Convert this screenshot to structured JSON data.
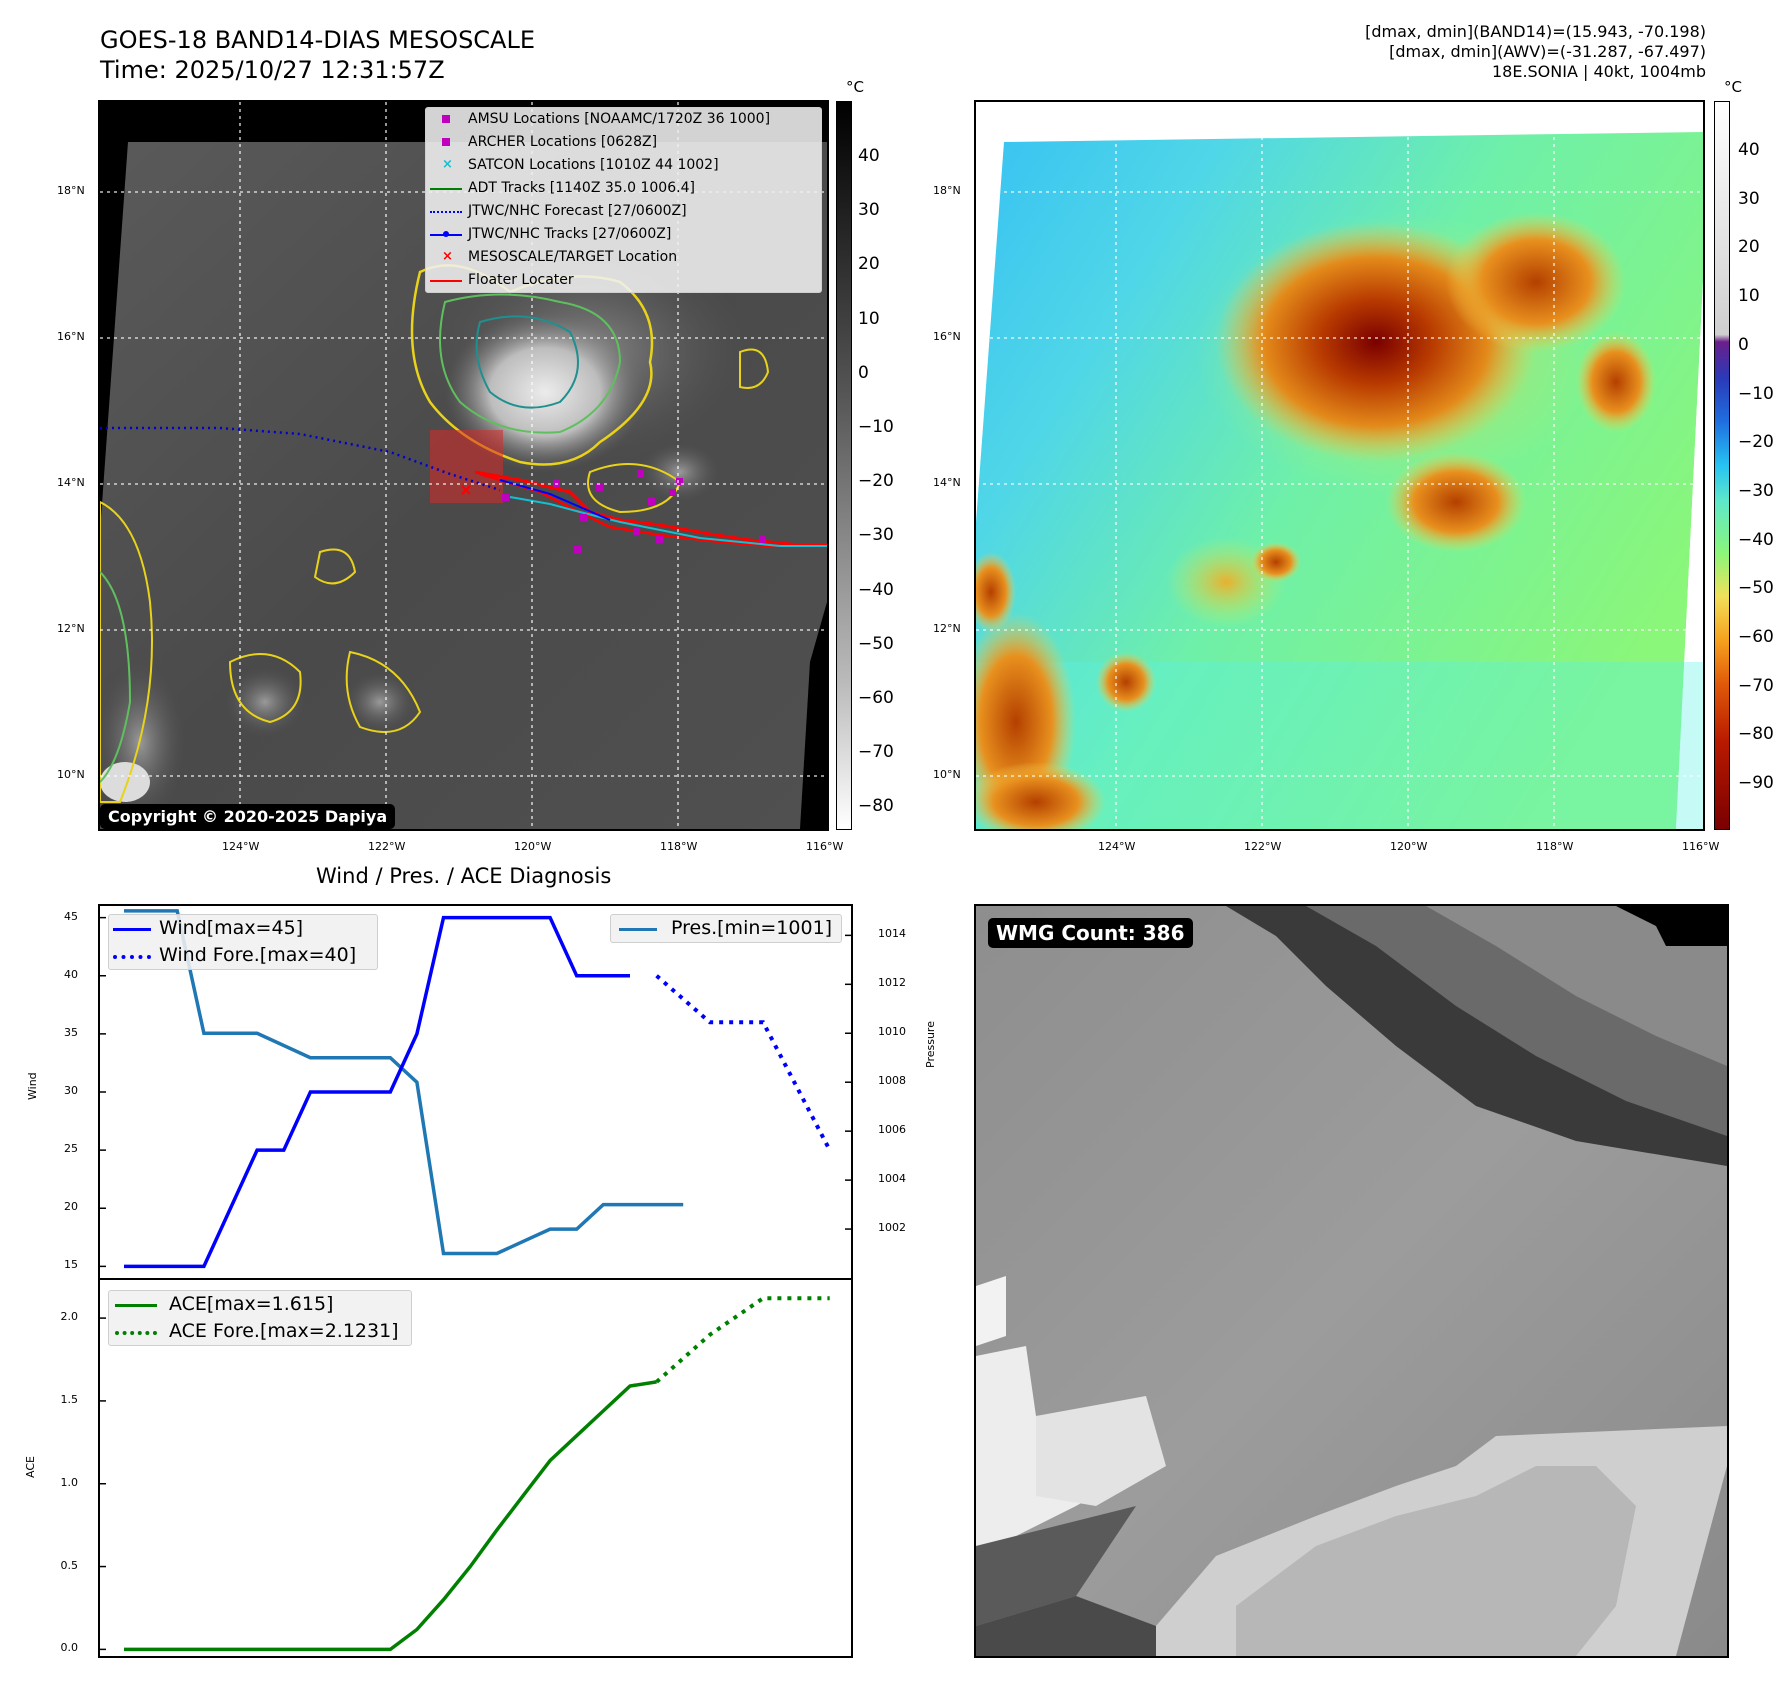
{
  "header": {
    "title": "GOES-18 BAND14-DIAS MESOSCALE",
    "time": "Time: 2025/10/27 12:31:57Z",
    "info_line1": "[dmax, dmin](BAND14)=(15.943, -70.198)",
    "info_line2": "[dmax, dmin](AWV)=(-31.287, -67.497)",
    "info_line3": "18E.SONIA | 40kt, 1004mb"
  },
  "map_axes": {
    "lat_labels": [
      "18°N",
      "16°N",
      "14°N",
      "12°N",
      "10°N"
    ],
    "lon_labels": [
      "124°W",
      "122°W",
      "120°W",
      "118°W",
      "116°W"
    ]
  },
  "left_map": {
    "copyright": "Copyright © 2020-2025 Dapiya",
    "legend": [
      {
        "label": "AMSU Locations [NOAAMC/1720Z 36 1000]",
        "color": "#bf00bf",
        "kind": "square"
      },
      {
        "label": "ARCHER Locations [0628Z]",
        "color": "#bf00bf",
        "kind": "square"
      },
      {
        "label": "SATCON Locations [1010Z 44 1002]",
        "color": "#17becf",
        "kind": "x"
      },
      {
        "label": "ADT Tracks [1140Z 35.0 1006.4]",
        "color": "#008000",
        "kind": "line"
      },
      {
        "label": "JTWC/NHC Forecast [27/0600Z]",
        "color": "#0000ff",
        "kind": "dotted"
      },
      {
        "label": "JTWC/NHC Tracks [27/0600Z]",
        "color": "#0000ff",
        "kind": "line-dot"
      },
      {
        "label": "MESOSCALE/TARGET Location",
        "color": "#ff0000",
        "kind": "x"
      },
      {
        "label": "Floater Locater",
        "color": "#ff0000",
        "kind": "line"
      }
    ],
    "colorbar": {
      "unit": "°C",
      "ticks": [
        "40",
        "30",
        "20",
        "10",
        "0",
        "−10",
        "−20",
        "−30",
        "−40",
        "−50",
        "−60",
        "−70",
        "−80"
      ]
    }
  },
  "right_map": {
    "colorbar": {
      "unit": "°C",
      "ticks": [
        "40",
        "30",
        "20",
        "10",
        "0",
        "−10",
        "−20",
        "−30",
        "−40",
        "−50",
        "−60",
        "−70",
        "−80",
        "−90"
      ]
    }
  },
  "wmg": {
    "label": "WMG Count: 386"
  },
  "chart_data": [
    {
      "type": "line",
      "title": "Wind / Pres. / ACE Diagnosis",
      "ylabel": "Wind",
      "ylim": [
        14,
        46
      ],
      "xlim": [
        -0.9,
        27.3
      ],
      "yticks": [
        15,
        20,
        25,
        30,
        35,
        40,
        45
      ],
      "series": [
        {
          "name": "Wind[max=45]",
          "color": "#0000ff",
          "style": "solid",
          "x": [
            0,
            3,
            5,
            6,
            7,
            8,
            9,
            10,
            11,
            12,
            13,
            14,
            15,
            16,
            17,
            18,
            19,
            20,
            21
          ],
          "values": [
            15,
            15,
            25,
            25,
            30,
            30,
            30,
            30,
            35,
            45,
            45,
            45,
            45,
            45,
            40,
            40,
            40,
            null,
            null
          ]
        },
        {
          "name": "Wind Fore.[max=40]",
          "color": "#0000ff",
          "style": "dotted",
          "x": [
            20,
            22,
            24,
            26.5
          ],
          "values": [
            40,
            36,
            36,
            25
          ]
        }
      ]
    },
    {
      "type": "line",
      "ylabel": "Pressure",
      "ylim": [
        1000,
        1015.2
      ],
      "yticks": [
        1002,
        1004,
        1006,
        1008,
        1010,
        1012,
        1014
      ],
      "series": [
        {
          "name": "Pres.[min=1001]",
          "color": "#1f77b4",
          "style": "solid",
          "x": [
            0,
            2,
            3,
            5,
            7,
            10,
            11,
            12,
            14,
            15,
            16,
            17,
            18,
            19,
            20,
            21
          ],
          "values": [
            1015,
            1015,
            1010,
            1010,
            1009,
            1009,
            1008,
            1001,
            1001,
            1001.5,
            1002,
            1002,
            1003,
            1003,
            1003,
            1003
          ]
        }
      ]
    },
    {
      "type": "line",
      "ylabel": "ACE",
      "ylim": [
        -0.04,
        2.23
      ],
      "xlim": [
        -0.9,
        27.3
      ],
      "yticks": [
        0.0,
        0.5,
        1.0,
        1.5,
        2.0
      ],
      "ytick_labels": [
        "0.0",
        "0.5",
        "1.0",
        "1.5",
        "2.0"
      ],
      "series": [
        {
          "name": "ACE[max=1.615]",
          "color": "#008000",
          "style": "solid",
          "x": [
            0,
            2,
            4,
            6,
            8,
            10,
            11,
            12,
            13,
            14,
            15,
            16,
            17,
            18,
            19,
            20
          ],
          "values": [
            0,
            0,
            0,
            0,
            0,
            0,
            0.12,
            0.3,
            0.5,
            0.72,
            0.93,
            1.14,
            1.29,
            1.44,
            1.59,
            1.615
          ]
        },
        {
          "name": "ACE Fore.[max=2.1231]",
          "color": "#008000",
          "style": "dotted",
          "x": [
            20,
            22,
            24,
            26.5
          ],
          "values": [
            1.615,
            1.9,
            2.12,
            2.12
          ]
        }
      ]
    }
  ]
}
